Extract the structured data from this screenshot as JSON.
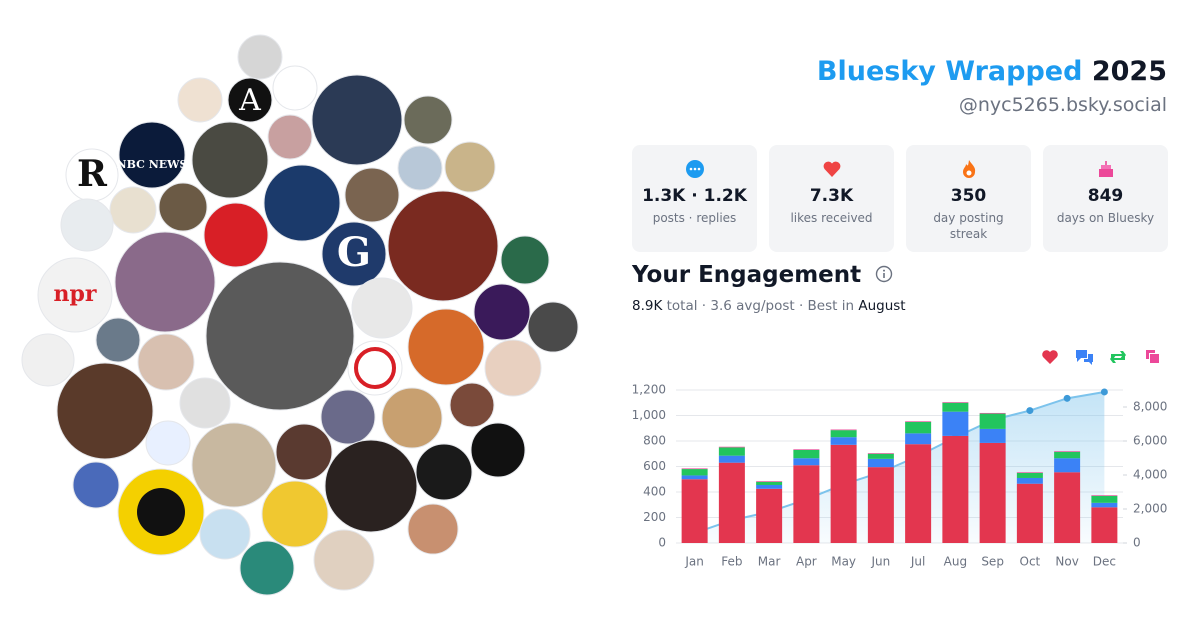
{
  "header": {
    "title": "Bluesky Wrapped",
    "year": "2025",
    "handle": "@nyc5265.bsky.social"
  },
  "stats": [
    {
      "value": "1.3K · 1.2K",
      "label": "posts · replies"
    },
    {
      "value": "7.3K",
      "label": "likes received"
    },
    {
      "value": "350",
      "label": "day posting streak"
    },
    {
      "value": "849",
      "label": "days on Bluesky"
    }
  ],
  "avatars": [
    {
      "label": "NBC NEWS"
    },
    {
      "label": "npr"
    },
    {
      "label": "R"
    },
    {
      "label": "A"
    },
    {
      "label": "G"
    }
  ],
  "engagement": {
    "title": "Your Engagement",
    "summary_total": "8.9K",
    "summary_text": "total · 3.6 avg/post · Best in",
    "summary_best": "August"
  },
  "chart_data": {
    "type": "bar",
    "stacked": true,
    "grid": true,
    "categories": [
      "Jan",
      "Feb",
      "Mar",
      "Apr",
      "May",
      "Jun",
      "Jul",
      "Aug",
      "Sep",
      "Oct",
      "Nov",
      "Dec"
    ],
    "series": [
      {
        "color": "#e3364f",
        "values": [
          500,
          630,
          425,
          610,
          770,
          595,
          775,
          840,
          785,
          465,
          555,
          280
        ]
      },
      {
        "color": "#3b82f6",
        "values": [
          30,
          55,
          30,
          55,
          60,
          65,
          85,
          190,
          110,
          45,
          110,
          35
        ]
      },
      {
        "color": "#22c55e",
        "values": [
          50,
          65,
          25,
          65,
          55,
          40,
          90,
          70,
          120,
          40,
          50,
          55
        ]
      },
      {
        "color": "#ec4899",
        "values": [
          5,
          5,
          5,
          5,
          5,
          5,
          5,
          5,
          5,
          5,
          5,
          5
        ]
      },
      {
        "type": "line",
        "axis": "y2",
        "color": "#7cc3ec",
        "values": [
          585,
          1340,
          1825,
          2560,
          3450,
          4155,
          5110,
          6215,
          7235,
          7790,
          8510,
          8885
        ]
      }
    ],
    "ylim": [
      0,
      1200
    ],
    "yticks": [
      0,
      200,
      400,
      600,
      800,
      {
        "value": 1000,
        "label": "1,000"
      },
      {
        "value": 1200,
        "label": "1,200"
      }
    ],
    "y2lim": [
      0,
      9000
    ],
    "y2ticks": [
      0,
      {
        "value": 2000,
        "label": "2,000"
      },
      {
        "value": 4000,
        "label": "4,000"
      },
      {
        "value": 6000,
        "label": "6,000"
      },
      {
        "value": 8000,
        "label": "8,000"
      }
    ]
  }
}
